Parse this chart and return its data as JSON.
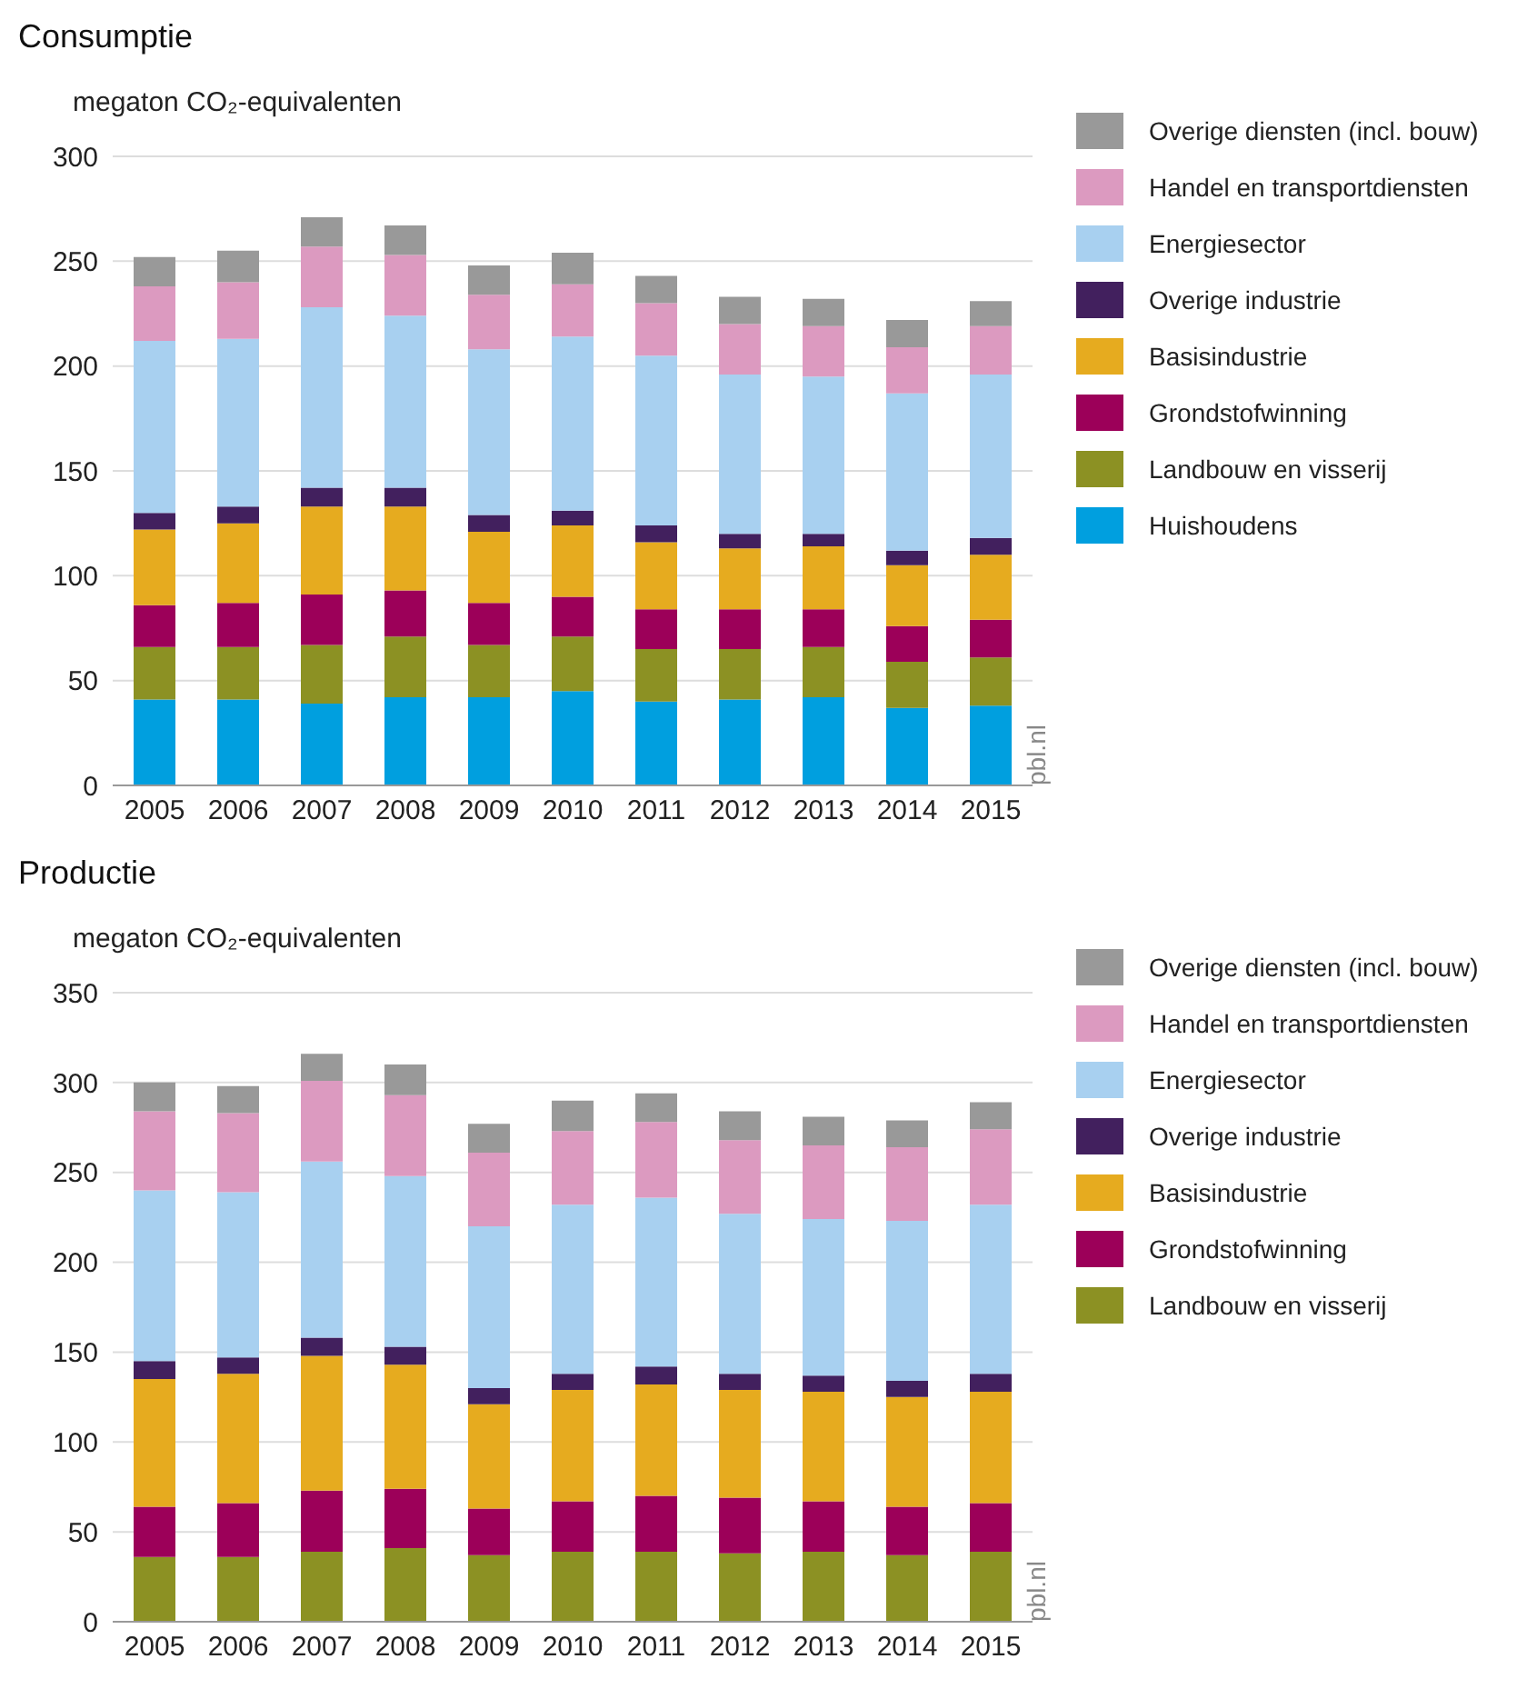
{
  "chart_data": [
    {
      "type": "bar",
      "title": "Consumptie",
      "ylabel": "megaton CO₂-equivalenten",
      "stacked": true,
      "grid": "y",
      "legend": "right",
      "annotations": [
        "pbl.nl"
      ],
      "categories": [
        "2005",
        "2006",
        "2007",
        "2008",
        "2009",
        "2010",
        "2011",
        "2012",
        "2013",
        "2014",
        "2015"
      ],
      "ylim": [
        0,
        300
      ],
      "yticks": [
        0,
        50,
        100,
        150,
        200,
        250,
        300
      ],
      "series": [
        {
          "name": "Huishoudens",
          "color": "#009fdf",
          "values": [
            41,
            41,
            39,
            42,
            42,
            45,
            40,
            41,
            42,
            37,
            38
          ]
        },
        {
          "name": "Landbouw en visserij",
          "color": "#8c9123",
          "values": [
            25,
            25,
            28,
            29,
            25,
            26,
            25,
            24,
            24,
            22,
            23
          ]
        },
        {
          "name": "Grondstofwinning",
          "color": "#9c0059",
          "values": [
            20,
            21,
            24,
            22,
            20,
            19,
            19,
            19,
            18,
            17,
            18
          ]
        },
        {
          "name": "Basisindustrie",
          "color": "#e6ab1f",
          "values": [
            36,
            38,
            42,
            40,
            34,
            34,
            32,
            29,
            30,
            29,
            31
          ]
        },
        {
          "name": "Overige industrie",
          "color": "#42205e",
          "values": [
            8,
            8,
            9,
            9,
            8,
            7,
            8,
            7,
            6,
            7,
            8
          ]
        },
        {
          "name": "Energiesector",
          "color": "#a8d0f0",
          "values": [
            82,
            80,
            86,
            82,
            79,
            83,
            81,
            76,
            75,
            75,
            78
          ]
        },
        {
          "name": "Handel en transportdiensten",
          "color": "#dc9ac0",
          "values": [
            26,
            27,
            29,
            29,
            26,
            25,
            25,
            24,
            24,
            22,
            23
          ]
        },
        {
          "name": "Overige diensten (incl. bouw)",
          "color": "#999999",
          "values": [
            14,
            15,
            14,
            14,
            14,
            15,
            13,
            13,
            13,
            13,
            12
          ]
        }
      ]
    },
    {
      "type": "bar",
      "title": "Productie",
      "ylabel": "megaton CO₂-equivalenten",
      "stacked": true,
      "grid": "y",
      "legend": "right",
      "annotations": [
        "pbl.nl"
      ],
      "categories": [
        "2005",
        "2006",
        "2007",
        "2008",
        "2009",
        "2010",
        "2011",
        "2012",
        "2013",
        "2014",
        "2015"
      ],
      "ylim": [
        0,
        350
      ],
      "yticks": [
        0,
        50,
        100,
        150,
        200,
        250,
        300,
        350
      ],
      "series": [
        {
          "name": "Landbouw en visserij",
          "color": "#8c9123",
          "values": [
            36,
            36,
            39,
            41,
            37,
            39,
            39,
            38,
            39,
            37,
            39
          ]
        },
        {
          "name": "Grondstofwinning",
          "color": "#9c0059",
          "values": [
            28,
            30,
            34,
            33,
            26,
            28,
            31,
            31,
            28,
            27,
            27
          ]
        },
        {
          "name": "Basisindustrie",
          "color": "#e6ab1f",
          "values": [
            71,
            72,
            75,
            69,
            58,
            62,
            62,
            60,
            61,
            61,
            62
          ]
        },
        {
          "name": "Overige industrie",
          "color": "#42205e",
          "values": [
            10,
            9,
            10,
            10,
            9,
            9,
            10,
            9,
            9,
            9,
            10
          ]
        },
        {
          "name": "Energiesector",
          "color": "#a8d0f0",
          "values": [
            95,
            92,
            98,
            95,
            90,
            94,
            94,
            89,
            87,
            89,
            94
          ]
        },
        {
          "name": "Handel en transportdiensten",
          "color": "#dc9ac0",
          "values": [
            44,
            44,
            45,
            45,
            41,
            41,
            42,
            41,
            41,
            41,
            42
          ]
        },
        {
          "name": "Overige diensten (incl. bouw)",
          "color": "#999999",
          "values": [
            16,
            15,
            15,
            17,
            16,
            17,
            16,
            16,
            16,
            15,
            15
          ]
        }
      ]
    }
  ]
}
